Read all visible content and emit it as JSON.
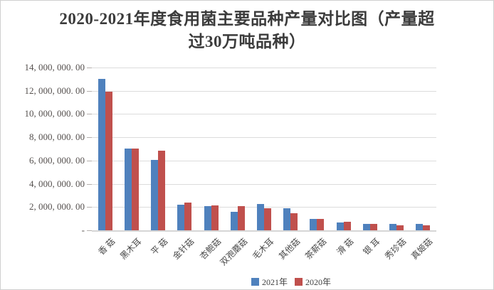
{
  "title": {
    "text": "2020-2021年度食用菌主要品种产量对比图（产量超过30万吨品种）",
    "line1": "2020-2021年度食用菌主要品种产量对比图（产量超",
    "line2": "过30万吨品种）"
  },
  "y_axis": {
    "tick_labels": [
      "14, 000, 000. 00",
      "12, 000, 000. 00",
      "10, 000, 000. 00",
      "8, 000, 000. 00",
      "6, 000, 000. 00",
      "4, 000, 000. 00",
      "2, 000, 000. 00",
      "-"
    ]
  },
  "x_axis": {
    "labels": [
      "香 菇",
      "黑木耳",
      "平 菇",
      "金针菇",
      "杏鲍菇",
      "双孢蘑菇",
      "毛木耳",
      "其他菇",
      "茶薪菇",
      "滑 菇",
      "银 耳",
      "秀珍菇",
      "真姬菇"
    ]
  },
  "legend": {
    "items": [
      {
        "label": "2021年",
        "color": "#4F81BD"
      },
      {
        "label": "2020年",
        "color": "#C0504D"
      }
    ]
  },
  "colors": {
    "bar_2021": "#4F81BD",
    "bar_2020": "#C0504D",
    "gridline": "#DCDCDC",
    "axis_line": "#D6D6D6",
    "text": "#3F3F3F"
  },
  "chart_data": {
    "type": "bar",
    "title": "2020-2021年度食用菌主要品种产量对比图（产量超过30万吨品种）",
    "categories": [
      "香菇",
      "黑木耳",
      "平菇",
      "金针菇",
      "杏鲍菇",
      "双孢蘑菇",
      "毛木耳",
      "其他菇",
      "茶薪菇",
      "滑菇",
      "银耳",
      "秀珍菇",
      "真姬菇"
    ],
    "series": [
      {
        "name": "2021年",
        "color": "#4F81BD",
        "values": [
          13000000,
          7020000,
          6040000,
          2200000,
          2060000,
          1620000,
          2280000,
          1900000,
          990000,
          670000,
          530000,
          580000,
          520000
        ]
      },
      {
        "name": "2020年",
        "color": "#C0504D",
        "values": [
          11950000,
          7060000,
          6820000,
          2370000,
          2170000,
          2060000,
          1870000,
          1450000,
          1000000,
          730000,
          570000,
          440000,
          400000
        ]
      }
    ],
    "xlabel": "",
    "ylabel": "",
    "ylim": [
      0,
      14000000
    ],
    "y_tick_interval": 2000000,
    "grid": true,
    "legend_position": "bottom"
  }
}
